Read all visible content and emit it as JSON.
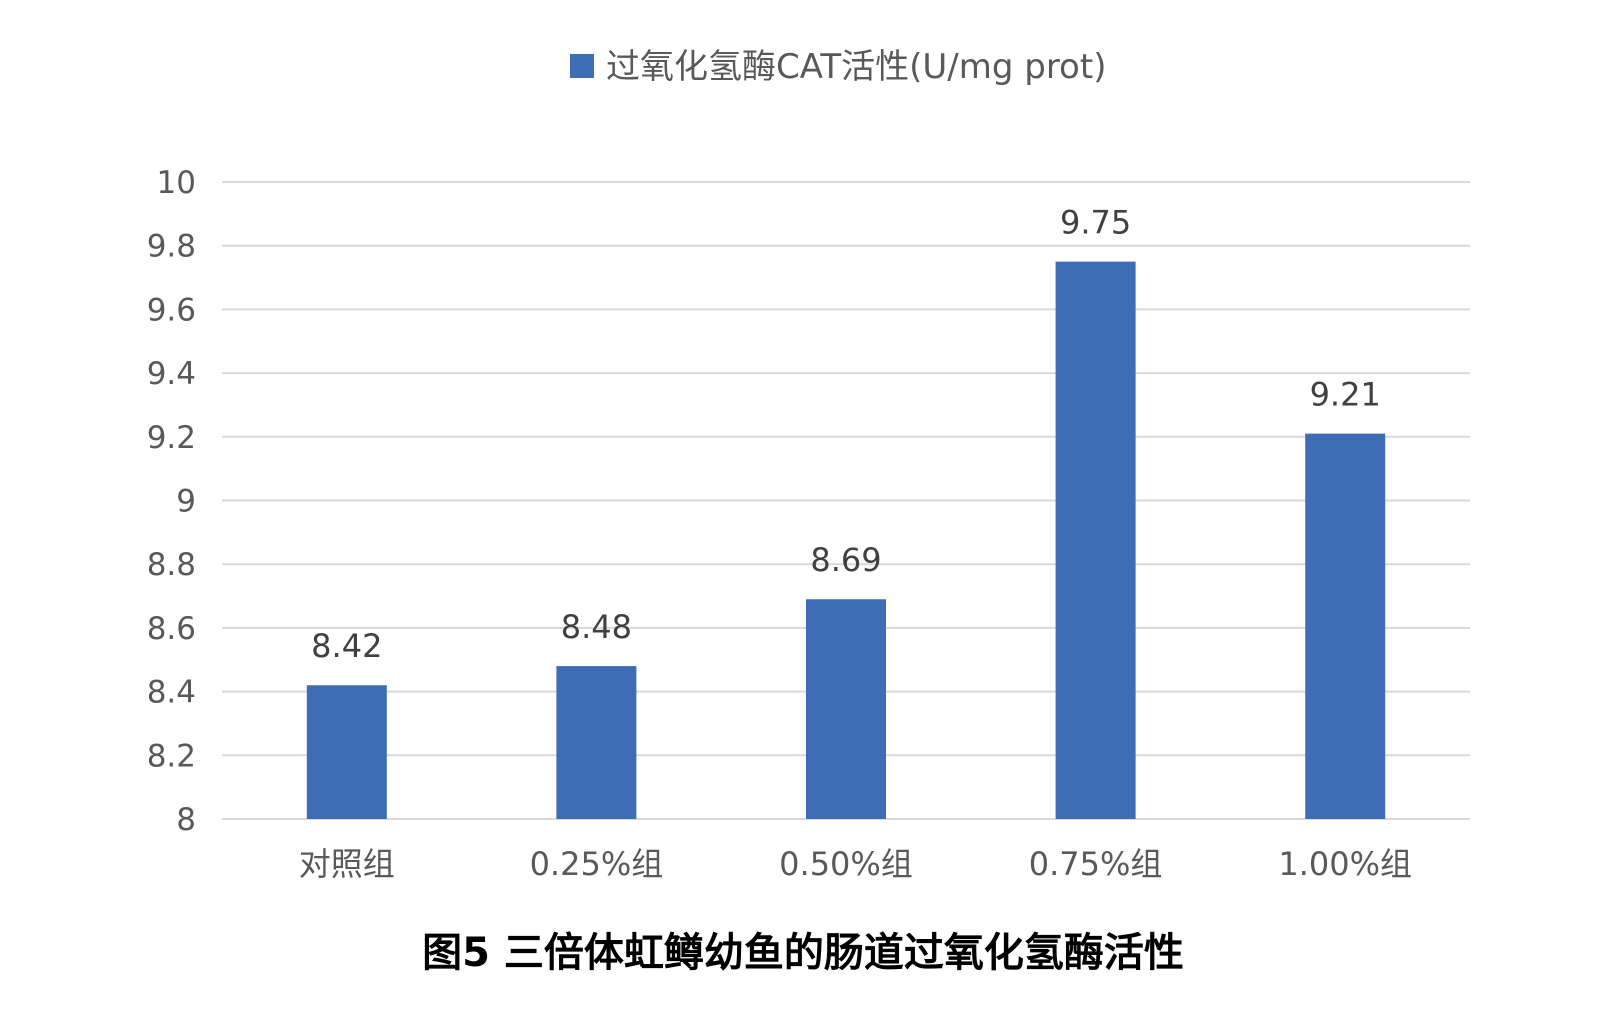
{
  "chart_data": {
    "type": "bar",
    "title": "图5 三倍体虹鳟幼鱼的肠道过氧化氢酶活性",
    "xlabel": "",
    "ylabel": "",
    "categories": [
      "对照组",
      "0.25%组",
      "0.50%组",
      "0.75%组",
      "1.00%组"
    ],
    "series": [
      {
        "name": "过氧化氢酶CAT活性(U/mg prot)",
        "values": [
          8.42,
          8.48,
          8.69,
          9.75,
          9.21
        ],
        "data_labels": [
          "8.42",
          "8.48",
          "8.69",
          "9.75",
          "9.21"
        ],
        "color": "#3E6DB5"
      }
    ],
    "ylim": [
      8,
      10
    ],
    "yticks": [
      "8",
      "8.2",
      "8.4",
      "8.6",
      "8.8",
      "9",
      "9.2",
      "9.4",
      "9.6",
      "9.8",
      "10"
    ],
    "grid": true,
    "legend": "top"
  }
}
